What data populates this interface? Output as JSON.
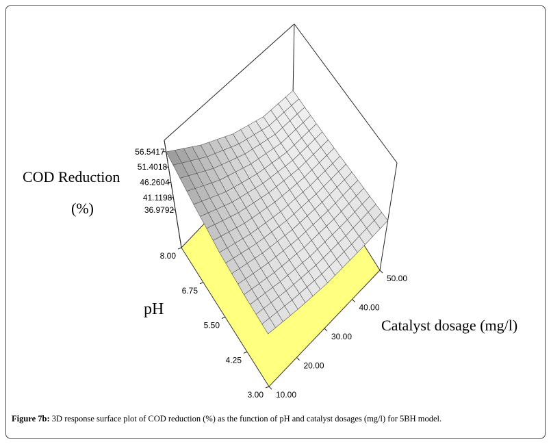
{
  "chart_data": {
    "type": "surface3d",
    "zlabel_lines": [
      "COD Reduction",
      "(%)"
    ],
    "xlabel": "pH",
    "ylabel": "Catalyst dosage (mg/l)",
    "x": [
      3,
      4.25,
      5.5,
      6.75,
      8
    ],
    "y": [
      10,
      20,
      30,
      40,
      50
    ],
    "z": [
      [
        42.0,
        40.5,
        39.6,
        40.0,
        41.0
      ],
      [
        43.5,
        41.2,
        39.8,
        39.6,
        40.2
      ],
      [
        46.0,
        42.5,
        40.2,
        39.2,
        39.3
      ],
      [
        50.5,
        45.0,
        41.2,
        38.8,
        38.5
      ],
      [
        56.5,
        49.0,
        43.0,
        39.0,
        38.0
      ]
    ],
    "xlim": [
      3,
      8
    ],
    "ylim": [
      10,
      50
    ],
    "zlim": [
      24.3,
      60.4
    ],
    "xticks": [
      {
        "value": 3,
        "label": "3.00"
      },
      {
        "value": 4.25,
        "label": "4.25"
      },
      {
        "value": 5.5,
        "label": "5.50"
      },
      {
        "value": 6.75,
        "label": "6.75"
      },
      {
        "value": 8,
        "label": "8.00"
      }
    ],
    "yticks": [
      {
        "value": 10,
        "label": "10.00"
      },
      {
        "value": 20,
        "label": "20.00"
      },
      {
        "value": 30,
        "label": "30.00"
      },
      {
        "value": 40,
        "label": "40.00"
      },
      {
        "value": 50,
        "label": "50.00"
      }
    ],
    "zticks": [
      36.9792,
      41.1198,
      46.2604,
      51.4018,
      56.5417
    ],
    "floor_color": "#ffff80"
  },
  "caption": {
    "label": "Figure 7b:",
    "text": " 3D response surface plot of COD reduction (%) as the function of pH and catalyst dosages (mg/l) for 5BH model."
  }
}
